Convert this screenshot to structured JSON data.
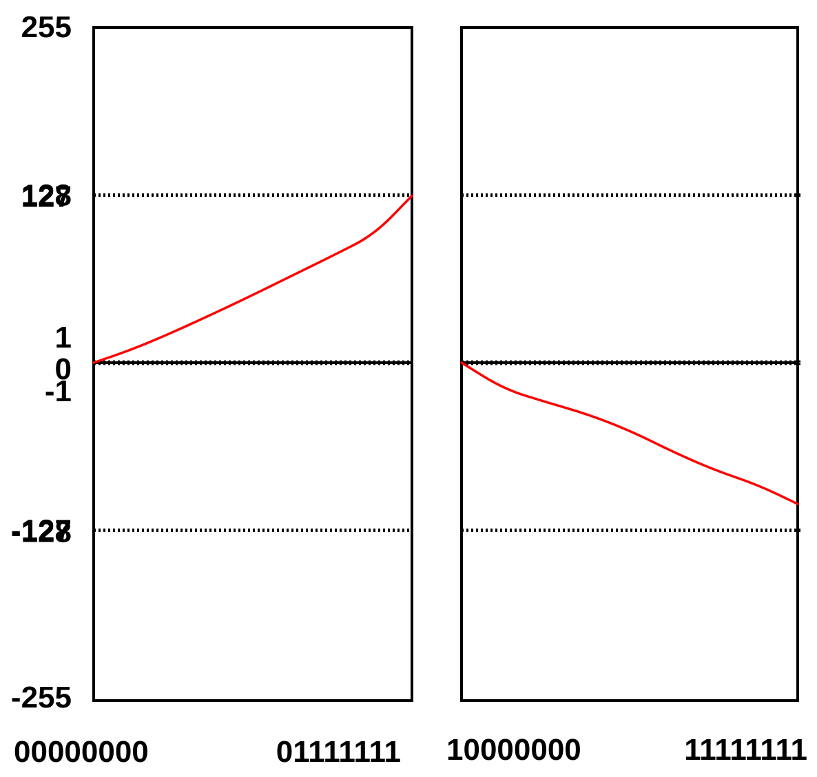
{
  "chart_data": {
    "type": "line",
    "title": "",
    "xlabel": "",
    "ylabel": "",
    "ylim": [
      -255,
      255
    ],
    "y_tick_labels": [
      "255",
      "128",
      "127",
      "1",
      "0",
      "-1",
      "-127",
      "-128",
      "-255"
    ],
    "dotted_reference_lines": [
      128,
      127,
      1,
      -1,
      -127,
      -128
    ],
    "line_color": "#ff0000",
    "panels": [
      {
        "x_start_label": "00000000",
        "x_end_label": "01111111",
        "series": [
          {
            "x": [
              0,
              16,
              32,
              48,
              64,
              80,
              96,
              112,
              127
            ],
            "y": [
              0,
              10.5,
              23.5,
              37.5,
              52,
              67,
              82,
              97.5,
              127
            ]
          }
        ]
      },
      {
        "x_start_label": "10000000",
        "x_end_label": "11111111",
        "series": [
          {
            "x": [
              128,
              144,
              160,
              176,
              192,
              208,
              224,
              240,
              255
            ],
            "y": [
              0,
              -20,
              -30,
              -39.5,
              -52,
              -68,
              -82,
              -93,
              -107.5
            ]
          }
        ]
      }
    ]
  }
}
